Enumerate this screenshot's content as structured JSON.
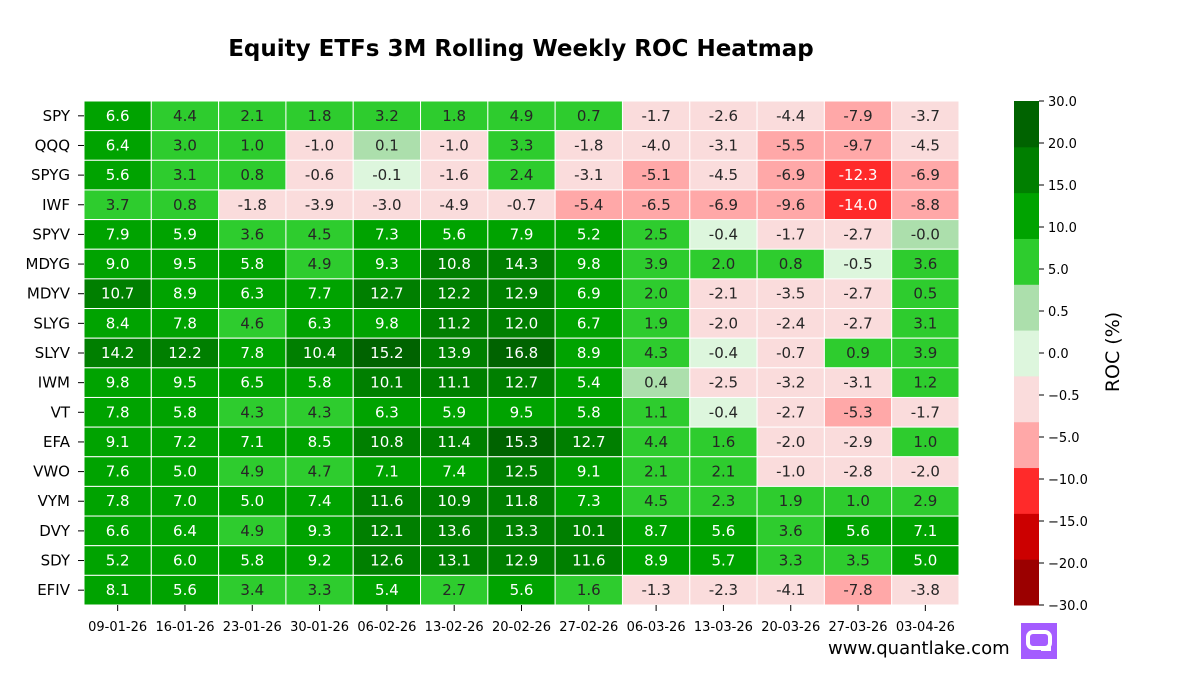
{
  "chart_data": {
    "type": "heatmap",
    "title": "Equity ETFs 3M Rolling Weekly ROC Heatmap",
    "rows": [
      "SPY",
      "QQQ",
      "SPYG",
      "IWF",
      "SPYV",
      "MDYG",
      "MDYV",
      "SLYG",
      "SLYV",
      "IWM",
      "VT",
      "EFA",
      "VWO",
      "VYM",
      "DVY",
      "SDY",
      "EFIV"
    ],
    "columns": [
      "09-01-26",
      "16-01-26",
      "23-01-26",
      "30-01-26",
      "06-02-26",
      "13-02-26",
      "20-02-26",
      "27-02-26",
      "06-03-26",
      "13-03-26",
      "20-03-26",
      "27-03-26",
      "03-04-26"
    ],
    "values": [
      [
        "6.6",
        "4.4",
        "2.1",
        "1.8",
        "3.2",
        "1.8",
        "4.9",
        "0.7",
        "-1.7",
        "-2.6",
        "-4.4",
        "-7.9",
        "-3.7"
      ],
      [
        "6.4",
        "3.0",
        "1.0",
        "-1.0",
        "0.1",
        "-1.0",
        "3.3",
        "-1.8",
        "-4.0",
        "-3.1",
        "-5.5",
        "-9.7",
        "-4.5"
      ],
      [
        "5.6",
        "3.1",
        "0.8",
        "-0.6",
        "-0.1",
        "-1.6",
        "2.4",
        "-3.1",
        "-5.1",
        "-4.5",
        "-6.9",
        "-12.3",
        "-6.9"
      ],
      [
        "3.7",
        "0.8",
        "-1.8",
        "-3.9",
        "-3.0",
        "-4.9",
        "-0.7",
        "-5.4",
        "-6.5",
        "-6.9",
        "-9.6",
        "-14.0",
        "-8.8"
      ],
      [
        "7.9",
        "5.9",
        "3.6",
        "4.5",
        "7.3",
        "5.6",
        "7.9",
        "5.2",
        "2.5",
        "-0.4",
        "-1.7",
        "-2.7",
        "-0.0"
      ],
      [
        "9.0",
        "9.5",
        "5.8",
        "4.9",
        "9.3",
        "10.8",
        "14.3",
        "9.8",
        "3.9",
        "2.0",
        "0.8",
        "-0.5",
        "3.6"
      ],
      [
        "10.7",
        "8.9",
        "6.3",
        "7.7",
        "12.7",
        "12.2",
        "12.9",
        "6.9",
        "2.0",
        "-2.1",
        "-3.5",
        "-2.7",
        "0.5"
      ],
      [
        "8.4",
        "7.8",
        "4.6",
        "6.3",
        "9.8",
        "11.2",
        "12.0",
        "6.7",
        "1.9",
        "-2.0",
        "-2.4",
        "-2.7",
        "3.1"
      ],
      [
        "14.2",
        "12.2",
        "7.8",
        "10.4",
        "15.2",
        "13.9",
        "16.8",
        "8.9",
        "4.3",
        "-0.4",
        "-0.7",
        "0.9",
        "3.9"
      ],
      [
        "9.8",
        "9.5",
        "6.5",
        "5.8",
        "10.1",
        "11.1",
        "12.7",
        "5.4",
        "0.4",
        "-2.5",
        "-3.2",
        "-3.1",
        "1.2"
      ],
      [
        "7.8",
        "5.8",
        "4.3",
        "4.3",
        "6.3",
        "5.9",
        "9.5",
        "5.8",
        "1.1",
        "-0.4",
        "-2.7",
        "-5.3",
        "-1.7"
      ],
      [
        "9.1",
        "7.2",
        "7.1",
        "8.5",
        "10.8",
        "11.4",
        "15.3",
        "12.7",
        "4.4",
        "1.6",
        "-2.0",
        "-2.9",
        "1.0"
      ],
      [
        "7.6",
        "5.0",
        "4.9",
        "4.7",
        "7.1",
        "7.4",
        "12.5",
        "9.1",
        "2.1",
        "2.1",
        "-1.0",
        "-2.8",
        "-2.0"
      ],
      [
        "7.8",
        "7.0",
        "5.0",
        "7.4",
        "11.6",
        "10.9",
        "11.8",
        "7.3",
        "4.5",
        "2.3",
        "1.9",
        "1.0",
        "2.9"
      ],
      [
        "6.6",
        "6.4",
        "4.9",
        "9.3",
        "12.1",
        "13.6",
        "13.3",
        "10.1",
        "8.7",
        "5.6",
        "3.6",
        "5.6",
        "7.1"
      ],
      [
        "5.2",
        "6.0",
        "5.8",
        "9.2",
        "12.6",
        "13.1",
        "12.9",
        "11.6",
        "8.9",
        "5.7",
        "3.3",
        "3.5",
        "5.0"
      ],
      [
        "8.1",
        "5.6",
        "3.4",
        "3.3",
        "5.4",
        "2.7",
        "5.6",
        "1.6",
        "-1.3",
        "-2.3",
        "-4.1",
        "-7.8",
        "-3.8"
      ]
    ],
    "colorbar": {
      "label": "ROC (%)",
      "boundaries": [
        -30,
        -20,
        -15,
        -10,
        -5,
        -0.5,
        0,
        0.5,
        5,
        10,
        15,
        20,
        30
      ],
      "tick_labels": [
        "30.0",
        "20.0",
        "15.0",
        "10.0",
        "5.0",
        "0.5",
        "0.0",
        "−0.5",
        "−5.0",
        "−10.0",
        "−15.0",
        "−20.0",
        "−30.0"
      ],
      "colors": [
        "#9b0000",
        "#cc0000",
        "#ff2a2a",
        "#ffa8a8",
        "#fadcdc",
        "#ddf6dd",
        "#acdfac",
        "#2ecc2e",
        "#00a300",
        "#007f00",
        "#006300"
      ]
    }
  },
  "footer": {
    "site": "www.quantlake.com"
  },
  "logo": {
    "icon": "quantlake-logo-icon",
    "bg": "#a45cff"
  }
}
